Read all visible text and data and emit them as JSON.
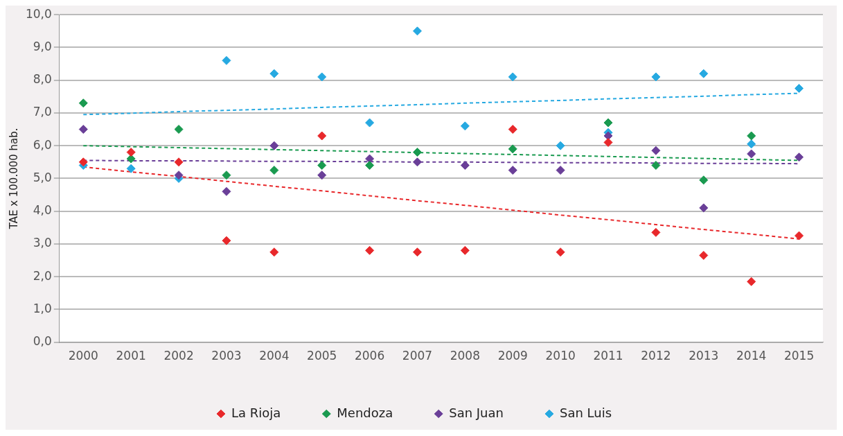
{
  "chart_data": {
    "type": "scatter",
    "ylabel": "TAE x 100.000 hab.",
    "categories": [
      "2000",
      "2001",
      "2002",
      "2003",
      "2004",
      "2005",
      "2006",
      "2007",
      "2008",
      "2009",
      "2010",
      "2011",
      "2012",
      "2013",
      "2014",
      "2015"
    ],
    "series": [
      {
        "name": "La Rioja",
        "color": "#e8282b",
        "values": [
          5.5,
          5.8,
          5.5,
          3.1,
          2.75,
          6.3,
          2.8,
          2.75,
          2.8,
          6.5,
          2.75,
          6.1,
          3.35,
          2.65,
          1.85,
          3.25
        ]
      },
      {
        "name": "Mendoza",
        "color": "#1a9a50",
        "values": [
          7.3,
          5.6,
          6.5,
          5.1,
          5.25,
          5.4,
          5.4,
          5.8,
          null,
          5.9,
          null,
          6.7,
          5.4,
          4.95,
          6.3,
          null
        ]
      },
      {
        "name": "San Juan",
        "color": "#6a3f98",
        "values": [
          6.5,
          null,
          5.1,
          4.6,
          6.0,
          5.1,
          5.6,
          5.5,
          5.4,
          5.25,
          5.25,
          6.3,
          5.85,
          4.1,
          5.75,
          5.65
        ]
      },
      {
        "name": "San Luis",
        "color": "#26a9e1",
        "values": [
          5.4,
          5.3,
          5.0,
          8.6,
          8.2,
          8.1,
          6.7,
          9.5,
          6.6,
          8.1,
          6.0,
          6.4,
          8.1,
          8.2,
          6.05,
          7.75
        ]
      },
      {
        "type": "line",
        "color": "#e8282b",
        "values": [
          5.35,
          5.2,
          5.06,
          4.91,
          4.76,
          4.62,
          4.47,
          4.32,
          4.18,
          4.03,
          3.88,
          3.74,
          3.59,
          3.44,
          3.3,
          3.15
        ],
        "line_style": "dashed",
        "marker": "none"
      },
      {
        "type": "line",
        "color": "#1a9a50",
        "values": [
          6.0,
          5.97,
          5.94,
          5.91,
          5.88,
          5.85,
          5.82,
          5.79,
          5.76,
          5.73,
          5.7,
          5.67,
          5.64,
          5.61,
          5.58,
          5.55
        ],
        "line_style": "dashed",
        "marker": "none"
      },
      {
        "type": "line",
        "color": "#6a3f98",
        "values": [
          5.55,
          5.54,
          5.54,
          5.53,
          5.52,
          5.52,
          5.51,
          5.5,
          5.5,
          5.49,
          5.48,
          5.48,
          5.47,
          5.46,
          5.46,
          5.45
        ],
        "line_style": "dashed",
        "marker": "none"
      },
      {
        "type": "line",
        "color": "#26a9e1",
        "values": [
          6.95,
          6.99,
          7.04,
          7.08,
          7.12,
          7.17,
          7.21,
          7.25,
          7.3,
          7.34,
          7.38,
          7.43,
          7.47,
          7.51,
          7.56,
          7.6
        ],
        "line_style": "dashed",
        "marker": "none"
      }
    ],
    "ylim": [
      0,
      10
    ],
    "yticks": [
      {
        "value": 0,
        "label": "0,0"
      },
      {
        "value": 1,
        "label": "1,0"
      },
      {
        "value": 2,
        "label": "2,0"
      },
      {
        "value": 3,
        "label": "3,0"
      },
      {
        "value": 4,
        "label": "4,0"
      },
      {
        "value": 5,
        "label": "5,0"
      },
      {
        "value": 6,
        "label": "6,0"
      },
      {
        "value": 7,
        "label": "7,0"
      },
      {
        "value": 8,
        "label": "8,0"
      },
      {
        "value": 9,
        "label": "9,0"
      },
      {
        "value": 10,
        "label": "10,0"
      }
    ],
    "grid": "y",
    "legend": "bottom",
    "marker": "diamond"
  }
}
